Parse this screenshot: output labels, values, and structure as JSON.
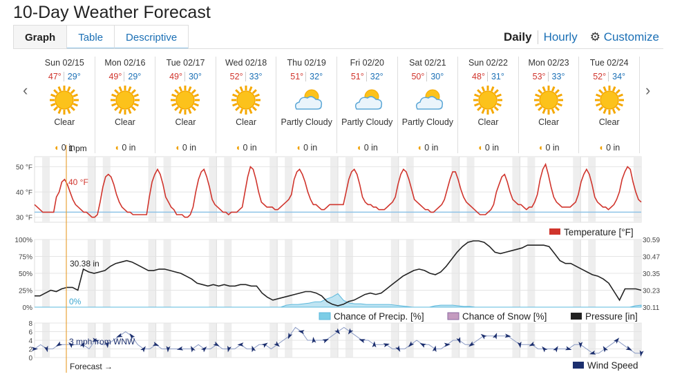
{
  "page_title": "10-Day Weather Forecast",
  "tabs": [
    "Graph",
    "Table",
    "Descriptive"
  ],
  "view": {
    "daily": "Daily",
    "hourly": "Hourly",
    "customize": "Customize"
  },
  "days": [
    {
      "date": "Sun 02/15",
      "hi": "47°",
      "lo": "29°",
      "cond": "Clear",
      "icon": "sun-icon",
      "precip": "0 in"
    },
    {
      "date": "Mon 02/16",
      "hi": "49°",
      "lo": "29°",
      "cond": "Clear",
      "icon": "sun-icon",
      "precip": "0 in"
    },
    {
      "date": "Tue 02/17",
      "hi": "49°",
      "lo": "30°",
      "cond": "Clear",
      "icon": "sun-icon",
      "precip": "0 in"
    },
    {
      "date": "Wed 02/18",
      "hi": "52°",
      "lo": "33°",
      "cond": "Clear",
      "icon": "sun-icon",
      "precip": "0 in"
    },
    {
      "date": "Thu 02/19",
      "hi": "51°",
      "lo": "32°",
      "cond": "Partly Cloudy",
      "icon": "partly-cloudy-icon",
      "precip": "0 in"
    },
    {
      "date": "Fri 02/20",
      "hi": "51°",
      "lo": "32°",
      "cond": "Partly Cloudy",
      "icon": "partly-cloudy-icon",
      "precip": "0 in"
    },
    {
      "date": "Sat 02/21",
      "hi": "50°",
      "lo": "30°",
      "cond": "Partly Cloudy",
      "icon": "partly-cloudy-icon",
      "precip": "0 in"
    },
    {
      "date": "Sun 02/22",
      "hi": "48°",
      "lo": "31°",
      "cond": "Clear",
      "icon": "sun-icon",
      "precip": "0 in"
    },
    {
      "date": "Mon 02/23",
      "hi": "53°",
      "lo": "33°",
      "cond": "Clear",
      "icon": "sun-icon",
      "precip": "0 in"
    },
    {
      "date": "Tue 02/24",
      "hi": "52°",
      "lo": "34°",
      "cond": "Clear",
      "icon": "sun-icon",
      "precip": "0 in"
    }
  ],
  "cursor": {
    "time": "1 pm",
    "temp": "40 °F",
    "pressure": "30.38 in",
    "precip": "0%",
    "wind": "3 mph from WNW"
  },
  "forecast_label": "Forecast →",
  "colors": {
    "temp": "#d0342c",
    "precip": "#7ccde6",
    "snow": "#c49bbf",
    "pressure": "#222222",
    "wind": "#1c2f6e",
    "accent": "#1a6fb5"
  },
  "chart_data": [
    {
      "type": "line",
      "ylim": [
        28,
        54
      ],
      "yticks": [
        "50 °F",
        "40 °F",
        "30 °F"
      ],
      "ytick_values": [
        50,
        40,
        30
      ],
      "legend": "Temperature [°F]",
      "series": [
        {
          "name": "Temperature [°F]",
          "values": [
            35,
            34,
            33,
            32,
            32,
            32,
            32,
            32,
            38,
            40,
            44,
            45,
            43,
            40,
            37,
            35,
            34,
            33,
            32,
            32,
            31,
            30,
            30,
            31,
            36,
            42,
            46,
            47,
            46,
            43,
            39,
            36,
            34,
            33,
            32,
            32,
            31,
            31,
            31,
            31,
            31,
            31,
            38,
            44,
            47,
            49,
            47,
            43,
            38,
            36,
            34,
            33,
            31,
            31,
            31,
            30,
            30,
            31,
            34,
            40,
            45,
            48,
            49,
            46,
            42,
            37,
            35,
            34,
            33,
            32,
            32,
            31,
            32,
            32,
            32,
            33,
            34,
            40,
            46,
            50,
            49,
            45,
            40,
            36,
            35,
            34,
            34,
            34,
            33,
            33,
            34,
            35,
            36,
            37,
            39,
            45,
            48,
            49,
            47,
            44,
            40,
            37,
            35,
            35,
            34,
            33,
            33,
            34,
            35,
            35,
            35,
            35,
            35,
            35,
            40,
            45,
            48,
            49,
            47,
            43,
            38,
            36,
            35,
            35,
            34,
            34,
            33,
            33,
            33,
            34,
            35,
            36,
            38,
            43,
            47,
            49,
            48,
            45,
            41,
            37,
            36,
            35,
            34,
            33,
            33,
            32,
            32,
            33,
            34,
            35,
            37,
            41,
            45,
            48,
            48,
            45,
            41,
            38,
            36,
            35,
            34,
            33,
            32,
            31,
            31,
            31,
            32,
            33,
            35,
            40,
            43,
            46,
            47,
            44,
            40,
            37,
            36,
            35,
            35,
            34,
            33,
            34,
            34,
            36,
            39,
            45,
            49,
            51,
            47,
            42,
            38,
            36,
            35,
            34,
            34,
            34,
            34,
            35,
            36,
            39,
            44,
            47,
            49,
            47,
            43,
            38,
            36,
            35,
            34,
            34,
            33,
            34,
            35,
            37,
            40,
            45,
            48,
            50,
            49,
            44,
            40,
            37,
            36
          ]
        }
      ],
      "baseline": 32
    },
    {
      "type": "line",
      "ylim_left": [
        0,
        100
      ],
      "yticks_left": [
        "100%",
        "75%",
        "50%",
        "25%",
        "0%"
      ],
      "yticks_left_values": [
        100,
        75,
        50,
        25,
        0
      ],
      "ylim_right": [
        30.11,
        30.59
      ],
      "yticks_right": [
        "30.59",
        "30.47",
        "30.35",
        "30.23",
        "30.11"
      ],
      "yticks_right_values": [
        30.59,
        30.47,
        30.35,
        30.23,
        30.11
      ],
      "legend": [
        "Chance of Precip. [%]",
        "Chance of Snow [%]",
        "Pressure [in]"
      ],
      "series": [
        {
          "name": "Pressure [in]",
          "values": [
            30.19,
            30.19,
            30.21,
            30.23,
            30.22,
            30.24,
            30.25,
            30.25,
            30.23,
            30.38,
            30.36,
            30.35,
            30.36,
            30.37,
            30.4,
            30.42,
            30.43,
            30.44,
            30.43,
            30.41,
            30.39,
            30.37,
            30.37,
            30.38,
            30.38,
            30.37,
            30.36,
            30.35,
            30.33,
            30.31,
            30.28,
            30.27,
            30.26,
            30.27,
            30.26,
            30.27,
            30.26,
            30.26,
            30.27,
            30.27,
            30.26,
            30.26,
            30.21,
            30.18,
            30.16,
            30.17,
            30.18,
            30.19,
            30.2,
            30.21,
            30.22,
            30.22,
            30.21,
            30.19,
            30.15,
            30.13,
            30.12,
            30.13,
            30.15,
            30.16,
            30.18,
            30.2,
            30.21,
            30.2,
            30.21,
            30.24,
            30.27,
            30.3,
            30.33,
            30.35,
            30.37,
            30.38,
            30.37,
            30.35,
            30.34,
            30.36,
            30.4,
            30.45,
            30.5,
            30.54,
            30.57,
            30.58,
            30.58,
            30.57,
            30.54,
            30.5,
            30.49,
            30.5,
            30.51,
            30.52,
            30.53,
            30.55,
            30.55,
            30.55,
            30.55,
            30.54,
            30.49,
            30.44,
            30.42,
            30.42,
            30.4,
            30.38,
            30.36,
            30.34,
            30.33,
            30.31,
            30.28,
            30.22,
            30.16,
            30.24,
            30.24,
            30.24,
            30.23
          ]
        },
        {
          "name": "Chance of Precip. [%]",
          "values": [
            0,
            0,
            0,
            0,
            0,
            0,
            0,
            0,
            0,
            0,
            0,
            0,
            0,
            0,
            0,
            0,
            0,
            0,
            0,
            0,
            0,
            0,
            0,
            0,
            0,
            0,
            0,
            0,
            0,
            0,
            0,
            0,
            0,
            0,
            0,
            0,
            0,
            0,
            0,
            0,
            0,
            0,
            0,
            0,
            3,
            4,
            4,
            5,
            6,
            8,
            8,
            12,
            15,
            20,
            10,
            6,
            5,
            5,
            4,
            4,
            4,
            4,
            4,
            3,
            2,
            1,
            0,
            0,
            0,
            0,
            2,
            3,
            3,
            3,
            2,
            1,
            1,
            0,
            0,
            0,
            0,
            0,
            0,
            0,
            0,
            0,
            0,
            0,
            0,
            0,
            0,
            0,
            0,
            0,
            0,
            0,
            0,
            0,
            0,
            0,
            0,
            0,
            0,
            0,
            0,
            2,
            3
          ]
        },
        {
          "name": "Chance of Snow [%]",
          "values": [
            0
          ]
        }
      ]
    },
    {
      "type": "line",
      "ylim": [
        0,
        8
      ],
      "yticks": [
        "8",
        "6",
        "4",
        "2",
        "0"
      ],
      "ytick_values": [
        8,
        6,
        4,
        2,
        0
      ],
      "legend": "Wind Speed",
      "series": [
        {
          "name": "Wind Speed",
          "values": [
            2,
            3,
            2,
            2,
            3,
            3,
            3,
            3,
            3,
            2,
            4,
            3,
            3,
            4,
            5,
            6,
            5,
            3,
            2,
            2,
            3,
            2,
            2,
            2,
            2,
            2,
            2,
            3,
            2,
            2,
            3,
            2,
            2,
            2,
            3,
            2,
            2,
            3,
            3,
            2,
            3,
            4,
            5,
            7,
            6,
            4,
            4,
            4,
            4,
            5,
            6,
            7,
            6,
            5,
            4,
            4,
            3,
            3,
            3,
            2,
            2,
            2,
            3,
            4,
            3,
            3,
            2,
            2,
            3,
            4,
            4,
            3,
            3,
            4,
            5,
            5,
            5,
            5,
            5,
            4,
            3,
            3,
            3,
            2,
            2,
            2,
            2,
            2,
            2,
            3,
            3,
            2,
            1,
            1,
            2,
            3,
            4,
            3,
            2,
            1,
            1
          ]
        }
      ]
    }
  ]
}
